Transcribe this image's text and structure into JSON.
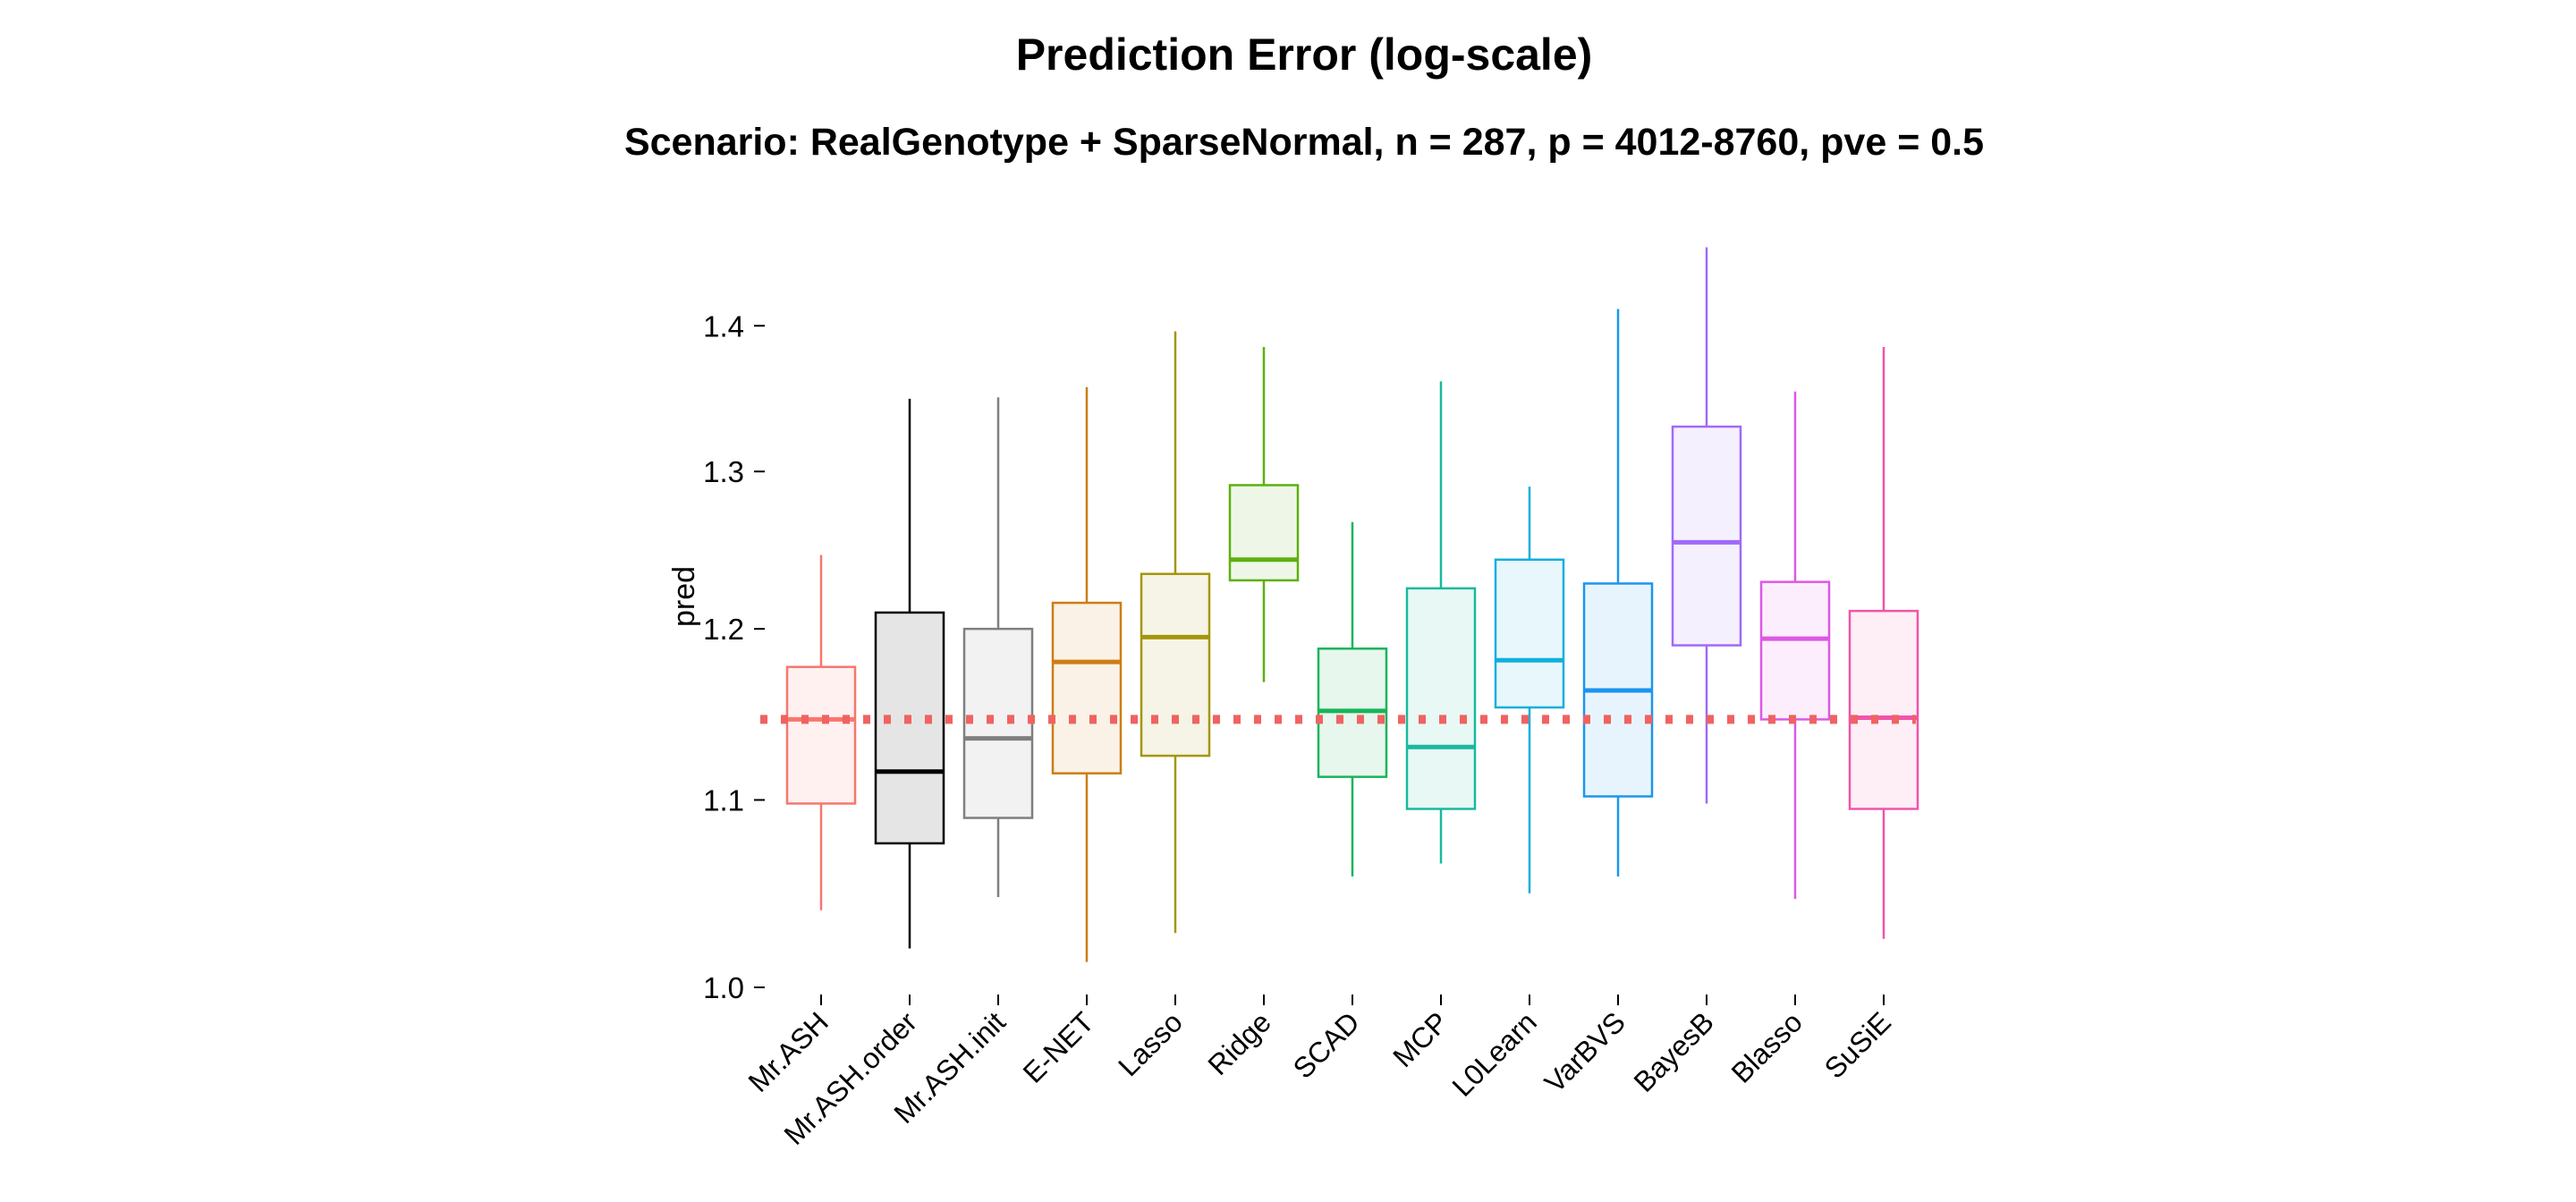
{
  "chart_data": {
    "type": "box",
    "title": "Prediction Error (log-scale)",
    "subtitle": "Scenario: RealGenotype + SparseNormal, n = 287, p = 4012-8760, pve = 0.5",
    "ylabel": "pred",
    "xlabel": "",
    "y_scale": "log",
    "ylim": [
      1.0,
      1.47
    ],
    "y_ticks": [
      1.0,
      1.1,
      1.2,
      1.3,
      1.4
    ],
    "y_tick_labels": [
      "1.0",
      "1.1",
      "1.2",
      "1.3",
      "1.4"
    ],
    "x_tick_rotation": -45,
    "grid": false,
    "legend": "none",
    "reference_line": {
      "y": 1.146,
      "style": "dotted",
      "color": "#ef6361"
    },
    "categories": [
      "Mr.ASH",
      "Mr.ASH.order",
      "Mr.ASH.init",
      "E-NET",
      "Lasso",
      "Ridge",
      "SCAD",
      "MCP",
      "L0Learn",
      "VarBVS",
      "BayesB",
      "Blasso",
      "SuSiE"
    ],
    "colors": [
      "#f8766d",
      "#000000",
      "#7f7f7f",
      "#cd7d14",
      "#a3960a",
      "#5db00f",
      "#18b45a",
      "#19b99f",
      "#12afdc",
      "#1d95ed",
      "#a06af8",
      "#dd58e4",
      "#f154a9"
    ],
    "boxes": [
      {
        "whisker_low": 1.04,
        "q1": 1.098,
        "median": 1.146,
        "q3": 1.177,
        "whisker_high": 1.246
      },
      {
        "whisker_low": 1.02,
        "q1": 1.076,
        "median": 1.116,
        "q3": 1.21,
        "whisker_high": 1.349
      },
      {
        "whisker_low": 1.047,
        "q1": 1.09,
        "median": 1.135,
        "q3": 1.2,
        "whisker_high": 1.35
      },
      {
        "whisker_low": 1.013,
        "q1": 1.115,
        "median": 1.18,
        "q3": 1.216,
        "whisker_high": 1.357
      },
      {
        "whisker_low": 1.028,
        "q1": 1.125,
        "median": 1.195,
        "q3": 1.234,
        "whisker_high": 1.396
      },
      {
        "whisker_low": 1.168,
        "q1": 1.23,
        "median": 1.243,
        "q3": 1.291,
        "whisker_high": 1.385
      },
      {
        "whisker_low": 1.058,
        "q1": 1.113,
        "median": 1.151,
        "q3": 1.188,
        "whisker_high": 1.267
      },
      {
        "whisker_low": 1.065,
        "q1": 1.095,
        "median": 1.13,
        "q3": 1.225,
        "whisker_high": 1.361
      },
      {
        "whisker_low": 1.049,
        "q1": 1.153,
        "median": 1.181,
        "q3": 1.243,
        "whisker_high": 1.29
      },
      {
        "whisker_low": 1.058,
        "q1": 1.102,
        "median": 1.163,
        "q3": 1.228,
        "whisker_high": 1.412
      },
      {
        "whisker_low": 1.098,
        "q1": 1.19,
        "median": 1.254,
        "q3": 1.33,
        "whisker_high": 1.457
      },
      {
        "whisker_low": 1.046,
        "q1": 1.146,
        "median": 1.194,
        "q3": 1.229,
        "whisker_high": 1.354
      },
      {
        "whisker_low": 1.025,
        "q1": 1.095,
        "median": 1.147,
        "q3": 1.211,
        "whisker_high": 1.385
      }
    ]
  }
}
